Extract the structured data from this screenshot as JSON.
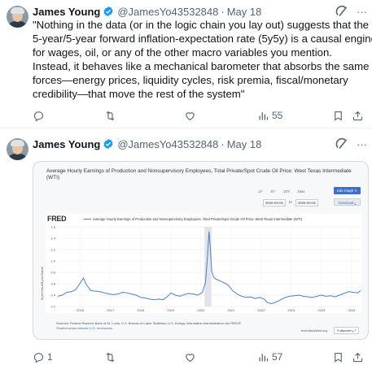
{
  "tweets": [
    {
      "author": {
        "name": "James Young",
        "handle": "@JamesYo43532848",
        "date": "May 18"
      },
      "text_lines": [
        "\"Nothing in the data (or in the logic chain you lay out) suggests that the",
        "5-year/5-year forward inflation-expectation rate (5y5y) is a causal engine",
        "for wages, oil, or any of the other macro variables you mention.",
        "Instead, it behaves like a mechanical barometer that absorbs the same",
        "forces—energy prices, liquidity cycles, risk premia, fiscal/monetary",
        "credibility—that move the rest of the system\""
      ],
      "actions": {
        "replies": "",
        "reposts": "",
        "likes": "",
        "views": "55"
      }
    },
    {
      "author": {
        "name": "James Young",
        "handle": "@JamesYo43532848",
        "date": "May 18"
      },
      "actions": {
        "replies": "1",
        "reposts": "",
        "likes": "",
        "views": "57"
      }
    }
  ],
  "separator": "·",
  "more_glyph": "···",
  "icons": [
    "verified-badge-icon",
    "grok-icon",
    "more-icon",
    "reply-icon",
    "repost-icon",
    "like-icon",
    "views-icon",
    "bookmark-icon",
    "share-icon"
  ],
  "colors": {
    "verified": "#1d9bf0",
    "muted": "#536471",
    "fred_blue": "#3b6fc9",
    "series_line": "#4a7fc1",
    "recession_shade": "#e1e4e8"
  },
  "fred_card": {
    "title": "Average Hourly Earnings of Production and Nonsupervisory Employees, Total Private/Spot Crude Oil Price: West Texas Intermediate (WTI)",
    "range_buttons": [
      "1Y",
      "5Y",
      "10Y",
      "Max"
    ],
    "date_from": "2015-04-01",
    "date_to_label": "to",
    "date_to": "2025-04-01",
    "edit_graph": "Edit Graph ✎",
    "download": "Download ⤓",
    "logo": "FRED",
    "legend": "Average Hourly Earnings of Production and Nonsupervisory Employees, Total Private/Spot Crude Oil Price: West Texas Intermediate (WTI)",
    "ylabel": "$ per Hour/$ per Barrel",
    "source": "Sources: Federal Reserve Bank of St. Louis; U.S. Bureau of Labor Statistics; U.S. Energy Information Administration via FRED®",
    "recessions_note": "Shaded areas indicate U.S. recessions.",
    "url": "fred.stlouisfed.org",
    "fullscreen": "Fullscreen ⤢"
  },
  "chart_data": {
    "type": "line",
    "ylim": [
      0.2,
      1.6
    ],
    "yticks": [
      "0.2",
      "0.4",
      "0.6",
      "0.8",
      "1.0",
      "1.2",
      "1.4",
      "1.6"
    ],
    "xticks": [
      "2016",
      "2017",
      "2018",
      "2019",
      "2020",
      "2021",
      "2022",
      "2023",
      "2024",
      "2025"
    ],
    "x_range": [
      2015.25,
      2025.3
    ],
    "recession": [
      2020.12,
      2020.35
    ],
    "x": [
      2015.25,
      2015.4,
      2015.55,
      2015.7,
      2015.85,
      2016.0,
      2016.1,
      2016.2,
      2016.35,
      2016.5,
      2016.65,
      2016.8,
      2016.95,
      2017.1,
      2017.25,
      2017.4,
      2017.55,
      2017.7,
      2017.85,
      2018.0,
      2018.15,
      2018.3,
      2018.45,
      2018.6,
      2018.75,
      2018.9,
      2019.0,
      2019.15,
      2019.3,
      2019.45,
      2019.6,
      2019.75,
      2019.9,
      2020.05,
      2020.15,
      2020.22,
      2020.27,
      2020.31,
      2020.36,
      2020.42,
      2020.5,
      2020.6,
      2020.75,
      2020.9,
      2021.05,
      2021.2,
      2021.35,
      2021.5,
      2021.65,
      2021.8,
      2021.95,
      2022.1,
      2022.2,
      2022.35,
      2022.5,
      2022.65,
      2022.8,
      2022.95,
      2023.1,
      2023.25,
      2023.4,
      2023.55,
      2023.7,
      2023.85,
      2024.0,
      2024.15,
      2024.3,
      2024.45,
      2024.6,
      2024.75,
      2024.9,
      2025.05,
      2025.2,
      2025.3
    ],
    "y": [
      0.38,
      0.4,
      0.45,
      0.46,
      0.5,
      0.62,
      0.7,
      0.58,
      0.48,
      0.47,
      0.46,
      0.44,
      0.42,
      0.41,
      0.42,
      0.45,
      0.44,
      0.42,
      0.4,
      0.36,
      0.35,
      0.33,
      0.32,
      0.33,
      0.32,
      0.38,
      0.44,
      0.4,
      0.38,
      0.41,
      0.43,
      0.42,
      0.4,
      0.45,
      0.62,
      1.1,
      1.52,
      1.25,
      0.82,
      0.72,
      0.68,
      0.66,
      0.62,
      0.58,
      0.48,
      0.42,
      0.38,
      0.36,
      0.37,
      0.34,
      0.36,
      0.33,
      0.27,
      0.25,
      0.28,
      0.32,
      0.36,
      0.38,
      0.39,
      0.4,
      0.38,
      0.37,
      0.36,
      0.38,
      0.4,
      0.38,
      0.39,
      0.37,
      0.4,
      0.43,
      0.46,
      0.45,
      0.44,
      0.48
    ]
  }
}
